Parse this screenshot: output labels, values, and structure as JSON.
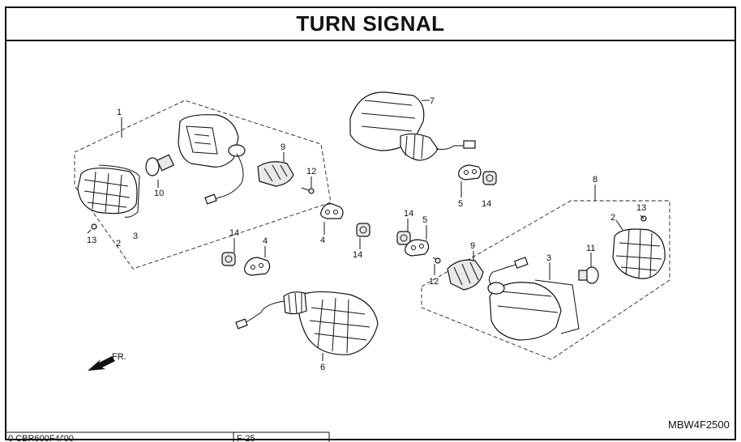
{
  "title": "TURN SIGNAL",
  "diagram_code": "MBW4F2500",
  "front_marker": "FR.",
  "footer": {
    "model": "0  CBR600F4/'00",
    "page": "F-25"
  },
  "callouts": {
    "c1": "1",
    "c2a": "2",
    "c3a": "3",
    "c13a": "13",
    "c10": "10",
    "c9a": "9",
    "c12a": "12",
    "c4a": "4",
    "c14a": "14",
    "c14b": "14",
    "c4b": "4",
    "c7": "7",
    "c5a": "5",
    "c14c": "14",
    "c8": "8",
    "c13b": "13",
    "c2b": "2",
    "c14d": "14",
    "c5b": "5",
    "c9b": "9",
    "c3b": "3",
    "c11": "11",
    "c12b": "12",
    "c6": "6"
  },
  "icons": [
    "front-arrow-icon"
  ]
}
